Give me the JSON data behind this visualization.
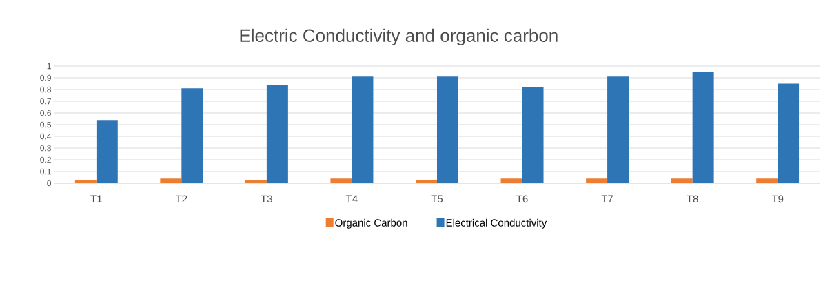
{
  "chart_data": {
    "type": "bar",
    "title": "Electric Conductivity and organic carbon",
    "categories": [
      "T1",
      "T2",
      "T3",
      "T4",
      "T5",
      "T6",
      "T7",
      "T8",
      "T9"
    ],
    "series": [
      {
        "name": "Organic Carbon",
        "color": "#ed7d31",
        "values": [
          0.03,
          0.04,
          0.03,
          0.04,
          0.03,
          0.04,
          0.04,
          0.04,
          0.04
        ]
      },
      {
        "name": "Electrical Conductivity",
        "color": "#2e75b6",
        "values": [
          0.54,
          0.81,
          0.84,
          0.91,
          0.91,
          0.82,
          0.91,
          0.95,
          0.85
        ]
      }
    ],
    "ylim": [
      0,
      1
    ],
    "yticks": [
      0,
      0.1,
      0.2,
      0.3,
      0.4,
      0.5,
      0.6,
      0.7,
      0.8,
      0.9,
      1
    ],
    "grid": "y",
    "legend": "bottom"
  }
}
